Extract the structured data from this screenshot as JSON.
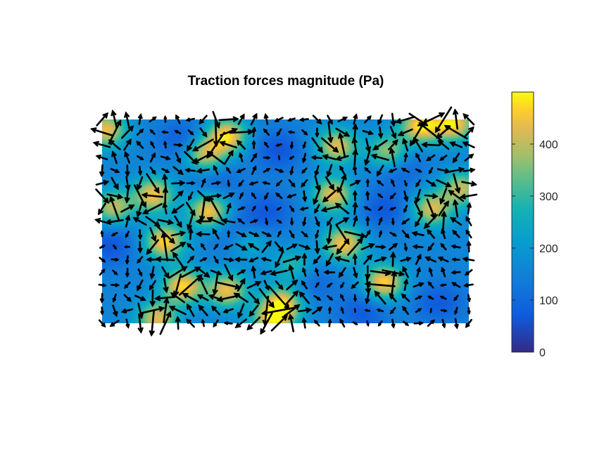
{
  "chart_data": {
    "type": "heatmap",
    "title": "Traction forces magnitude (Pa)",
    "colormap": "parula",
    "colorbar": {
      "range": [
        0,
        500
      ],
      "ticks": [
        0,
        100,
        200,
        300,
        400
      ],
      "tick_labels": [
        "0",
        "100",
        "200",
        "300",
        "400"
      ]
    },
    "grid": false,
    "domain": {
      "x": [
        0,
        1
      ],
      "y": [
        0,
        1
      ]
    },
    "baseline": 155,
    "hotspots": [
      {
        "x": 0.01,
        "y": 0.95,
        "value": 440
      },
      {
        "x": 0.34,
        "y": 0.92,
        "value": 470
      },
      {
        "x": 0.28,
        "y": 0.83,
        "value": 420
      },
      {
        "x": 0.87,
        "y": 0.97,
        "value": 480
      },
      {
        "x": 0.96,
        "y": 0.98,
        "value": 470
      },
      {
        "x": 0.64,
        "y": 0.87,
        "value": 430
      },
      {
        "x": 0.78,
        "y": 0.84,
        "value": 400
      },
      {
        "x": 0.14,
        "y": 0.63,
        "value": 450
      },
      {
        "x": 0.03,
        "y": 0.57,
        "value": 400
      },
      {
        "x": 0.29,
        "y": 0.55,
        "value": 460
      },
      {
        "x": 0.17,
        "y": 0.4,
        "value": 470
      },
      {
        "x": 0.63,
        "y": 0.63,
        "value": 440
      },
      {
        "x": 0.66,
        "y": 0.39,
        "value": 460
      },
      {
        "x": 0.9,
        "y": 0.56,
        "value": 420
      },
      {
        "x": 0.98,
        "y": 0.66,
        "value": 400
      },
      {
        "x": 0.22,
        "y": 0.18,
        "value": 470
      },
      {
        "x": 0.34,
        "y": 0.16,
        "value": 440
      },
      {
        "x": 0.49,
        "y": 0.09,
        "value": 480
      },
      {
        "x": 0.77,
        "y": 0.2,
        "value": 470
      },
      {
        "x": 0.15,
        "y": 0.02,
        "value": 430
      },
      {
        "x": 0.46,
        "y": 0.0,
        "value": 400
      },
      {
        "x": 0.52,
        "y": 0.28,
        "value": 300
      },
      {
        "x": 0.4,
        "y": 0.4,
        "value": 290
      }
    ],
    "lowspots": [
      {
        "x": 0.22,
        "y": 0.9,
        "value": 70
      },
      {
        "x": 0.48,
        "y": 0.85,
        "value": 60
      },
      {
        "x": 0.81,
        "y": 0.77,
        "value": 70
      },
      {
        "x": 0.77,
        "y": 0.56,
        "value": 65
      },
      {
        "x": 0.45,
        "y": 0.55,
        "value": 70
      },
      {
        "x": 0.37,
        "y": 0.44,
        "value": 70
      },
      {
        "x": 0.02,
        "y": 0.38,
        "value": 60
      },
      {
        "x": 0.92,
        "y": 0.1,
        "value": 70
      },
      {
        "x": 0.71,
        "y": 0.05,
        "value": 70
      },
      {
        "x": 0.57,
        "y": 0.2,
        "value": 90
      },
      {
        "x": 0.31,
        "y": 0.7,
        "value": 90
      }
    ],
    "vector_field": {
      "columns": 30,
      "rows": 17,
      "arrow_color": "#000000",
      "max_magnitude": 470,
      "seed": 7
    }
  }
}
